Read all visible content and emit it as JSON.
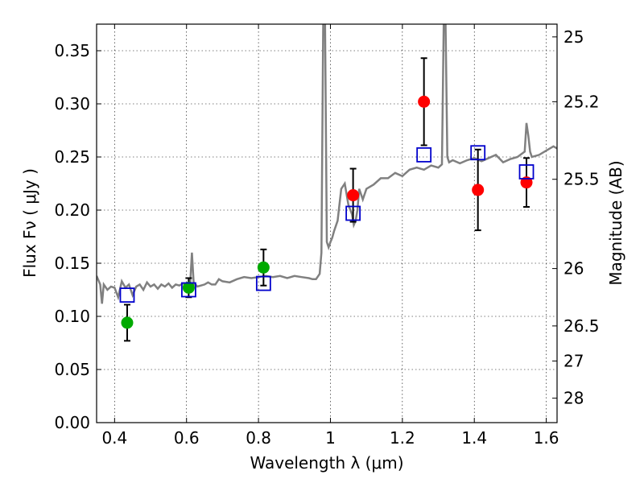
{
  "chart_data": {
    "type": "scatter",
    "title": "",
    "xlabel": "Wavelength  λ (μm)",
    "ylabel": "Flux  Fν  ( μJy )",
    "ylabel_right": "Magnitude (AB)",
    "xlim": [
      0.35,
      1.63
    ],
    "ylim": [
      0.0,
      0.375
    ],
    "grid": true,
    "x_ticks": [
      0.4,
      0.6,
      0.8,
      1.0,
      1.2,
      1.4,
      1.6
    ],
    "x_tick_labels": [
      "0.4",
      "0.6",
      "0.8",
      "1",
      "1.2",
      "1.4",
      "1.6"
    ],
    "y_ticks": [
      0.0,
      0.05,
      0.1,
      0.15,
      0.2,
      0.25,
      0.3,
      0.35
    ],
    "y_tick_labels": [
      "0.00",
      "0.05",
      "0.10",
      "0.15",
      "0.20",
      "0.25",
      "0.30",
      "0.35"
    ],
    "right_ticks": [
      {
        "label": "25",
        "flux": 0.363
      },
      {
        "label": "25.2",
        "flux": 0.302
      },
      {
        "label": "25.5",
        "flux": 0.229
      },
      {
        "label": "26",
        "flux": 0.145
      },
      {
        "label": "26.5",
        "flux": 0.091
      },
      {
        "label": "27",
        "flux": 0.058
      },
      {
        "label": "28",
        "flux": 0.023
      }
    ],
    "colors": {
      "model": "#808080",
      "green": "#00aa00",
      "red": "#ff0000",
      "model_box": "#0000cc",
      "errorbar": "#000000"
    },
    "series": [
      {
        "marker": "circle-green",
        "points": [
          {
            "x": 0.435,
            "y": 0.094,
            "err": 0.017
          },
          {
            "x": 0.606,
            "y": 0.127,
            "err": 0.009
          },
          {
            "x": 0.814,
            "y": 0.146,
            "err": 0.017
          }
        ]
      },
      {
        "marker": "circle-red",
        "points": [
          {
            "x": 1.063,
            "y": 0.214,
            "err": 0.025
          },
          {
            "x": 1.26,
            "y": 0.302,
            "err": 0.041
          },
          {
            "x": 1.41,
            "y": 0.219,
            "err": 0.038
          },
          {
            "x": 1.545,
            "y": 0.226,
            "err": 0.023
          }
        ]
      },
      {
        "marker": "square-blue",
        "points": [
          {
            "x": 0.435,
            "y": 0.12
          },
          {
            "x": 0.606,
            "y": 0.125
          },
          {
            "x": 0.814,
            "y": 0.131
          },
          {
            "x": 1.063,
            "y": 0.197
          },
          {
            "x": 1.26,
            "y": 0.252
          },
          {
            "x": 1.41,
            "y": 0.254
          },
          {
            "x": 1.545,
            "y": 0.236
          }
        ]
      },
      {
        "marker": "line-gray",
        "x": [
          0.35,
          0.36,
          0.365,
          0.37,
          0.38,
          0.39,
          0.4,
          0.41,
          0.42,
          0.43,
          0.44,
          0.45,
          0.46,
          0.47,
          0.48,
          0.49,
          0.5,
          0.51,
          0.52,
          0.53,
          0.54,
          0.55,
          0.56,
          0.57,
          0.58,
          0.59,
          0.6,
          0.61,
          0.615,
          0.62,
          0.625,
          0.63,
          0.64,
          0.65,
          0.66,
          0.67,
          0.68,
          0.69,
          0.7,
          0.72,
          0.74,
          0.76,
          0.78,
          0.8,
          0.82,
          0.84,
          0.86,
          0.88,
          0.9,
          0.92,
          0.94,
          0.95,
          0.96,
          0.97,
          0.975,
          0.98,
          0.985,
          0.99,
          0.995,
          1.0,
          1.005,
          1.01,
          1.02,
          1.03,
          1.04,
          1.05,
          1.06,
          1.065,
          1.07,
          1.075,
          1.08,
          1.09,
          1.1,
          1.12,
          1.14,
          1.16,
          1.18,
          1.2,
          1.22,
          1.24,
          1.26,
          1.28,
          1.3,
          1.31,
          1.315,
          1.32,
          1.325,
          1.33,
          1.34,
          1.36,
          1.38,
          1.4,
          1.42,
          1.44,
          1.46,
          1.48,
          1.5,
          1.52,
          1.54,
          1.545,
          1.55,
          1.555,
          1.56,
          1.58,
          1.6,
          1.62,
          1.63
        ],
        "y": [
          0.138,
          0.13,
          0.112,
          0.13,
          0.125,
          0.128,
          0.127,
          0.118,
          0.133,
          0.127,
          0.13,
          0.12,
          0.128,
          0.13,
          0.125,
          0.132,
          0.128,
          0.13,
          0.126,
          0.13,
          0.128,
          0.131,
          0.127,
          0.13,
          0.129,
          0.131,
          0.13,
          0.13,
          0.16,
          0.13,
          0.13,
          0.128,
          0.129,
          0.13,
          0.132,
          0.13,
          0.13,
          0.135,
          0.133,
          0.132,
          0.135,
          0.137,
          0.136,
          0.137,
          0.138,
          0.137,
          0.138,
          0.136,
          0.138,
          0.137,
          0.136,
          0.135,
          0.135,
          0.14,
          0.16,
          0.375,
          0.375,
          0.17,
          0.165,
          0.17,
          0.174,
          0.18,
          0.19,
          0.22,
          0.225,
          0.205,
          0.196,
          0.186,
          0.19,
          0.2,
          0.22,
          0.21,
          0.22,
          0.224,
          0.23,
          0.23,
          0.235,
          0.232,
          0.238,
          0.24,
          0.238,
          0.242,
          0.24,
          0.243,
          0.375,
          0.375,
          0.25,
          0.245,
          0.247,
          0.244,
          0.247,
          0.249,
          0.246,
          0.249,
          0.252,
          0.245,
          0.248,
          0.25,
          0.255,
          0.282,
          0.27,
          0.255,
          0.25,
          0.252,
          0.256,
          0.26,
          0.258
        ]
      }
    ]
  }
}
